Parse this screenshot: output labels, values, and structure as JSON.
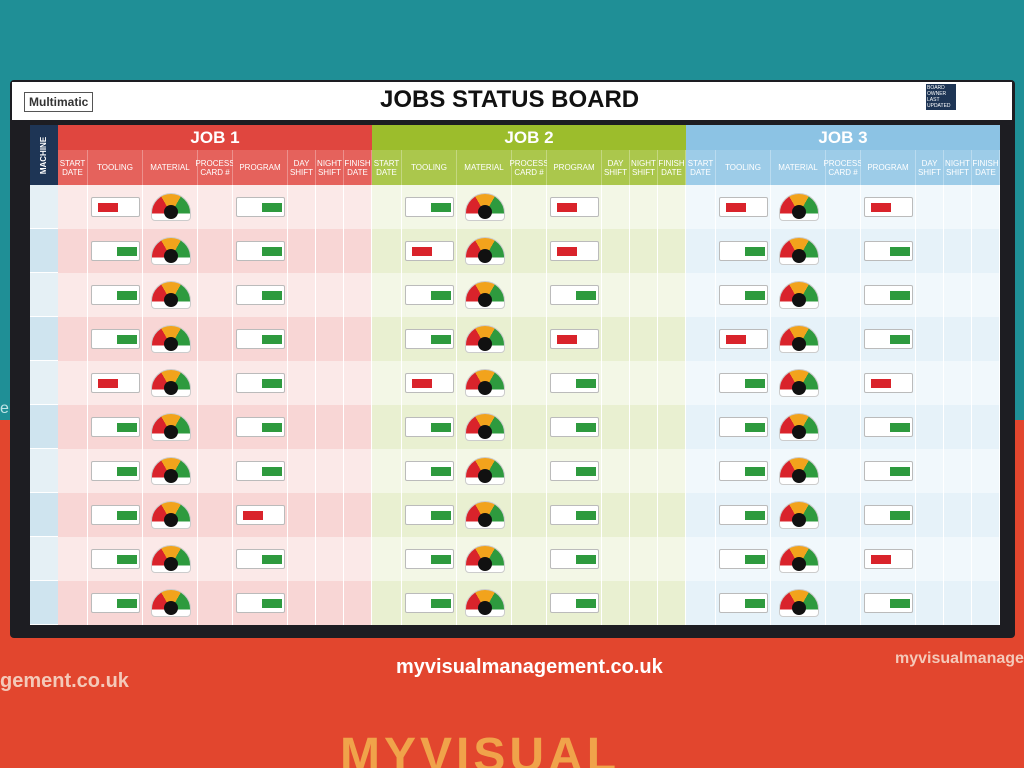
{
  "header": {
    "title": "JOBS STATUS BOARD",
    "logo": "Multimatic",
    "owner_label": "BOARD OWNER",
    "updated_label": "LAST UPDATED"
  },
  "machine_label": "MACHINE",
  "jobs": [
    {
      "title": "JOB 1",
      "color": "#e0463f",
      "columns": [
        "START DATE",
        "TOOLING",
        "MATERIAL",
        "PROCESS CARD #",
        "PROGRAM",
        "DAY SHIFT",
        "NIGHT SHIFT",
        "FINISH DATE"
      ],
      "tooling": [
        "red",
        "green",
        "green",
        "green",
        "red",
        "green",
        "green",
        "green",
        "green",
        "green"
      ],
      "program": [
        "green",
        "green",
        "green",
        "green",
        "green",
        "green",
        "green",
        "red",
        "green",
        "green"
      ]
    },
    {
      "title": "JOB 2",
      "color": "#9cbd2c",
      "columns": [
        "START DATE",
        "TOOLING",
        "MATERIAL",
        "PROCESS CARD #",
        "PROGRAM",
        "DAY SHIFT",
        "NIGHT SHIFT",
        "FINISH DATE"
      ],
      "tooling": [
        "green",
        "red",
        "green",
        "green",
        "red",
        "green",
        "green",
        "green",
        "green",
        "green"
      ],
      "program": [
        "red",
        "red",
        "green",
        "red",
        "green",
        "green",
        "green",
        "green",
        "green",
        "green"
      ]
    },
    {
      "title": "JOB 3",
      "color": "#8cc3e4",
      "columns": [
        "START DATE",
        "TOOLING",
        "MATERIAL",
        "PROCESS CARD #",
        "PROGRAM",
        "DAY SHIFT",
        "NIGHT SHIFT",
        "FINISH DATE"
      ],
      "tooling": [
        "red",
        "green",
        "green",
        "red",
        "green",
        "green",
        "green",
        "green",
        "green",
        "green"
      ],
      "program": [
        "red",
        "green",
        "green",
        "green",
        "red",
        "green",
        "green",
        "green",
        "red",
        "green"
      ]
    }
  ],
  "footer": {
    "website": "myvisualmanagement.co.uk",
    "left_text": "gement.co.uk",
    "right_text": "myvisualmanagem",
    "brand_bottom": "MYVISUAL",
    "side_text": "ement"
  }
}
